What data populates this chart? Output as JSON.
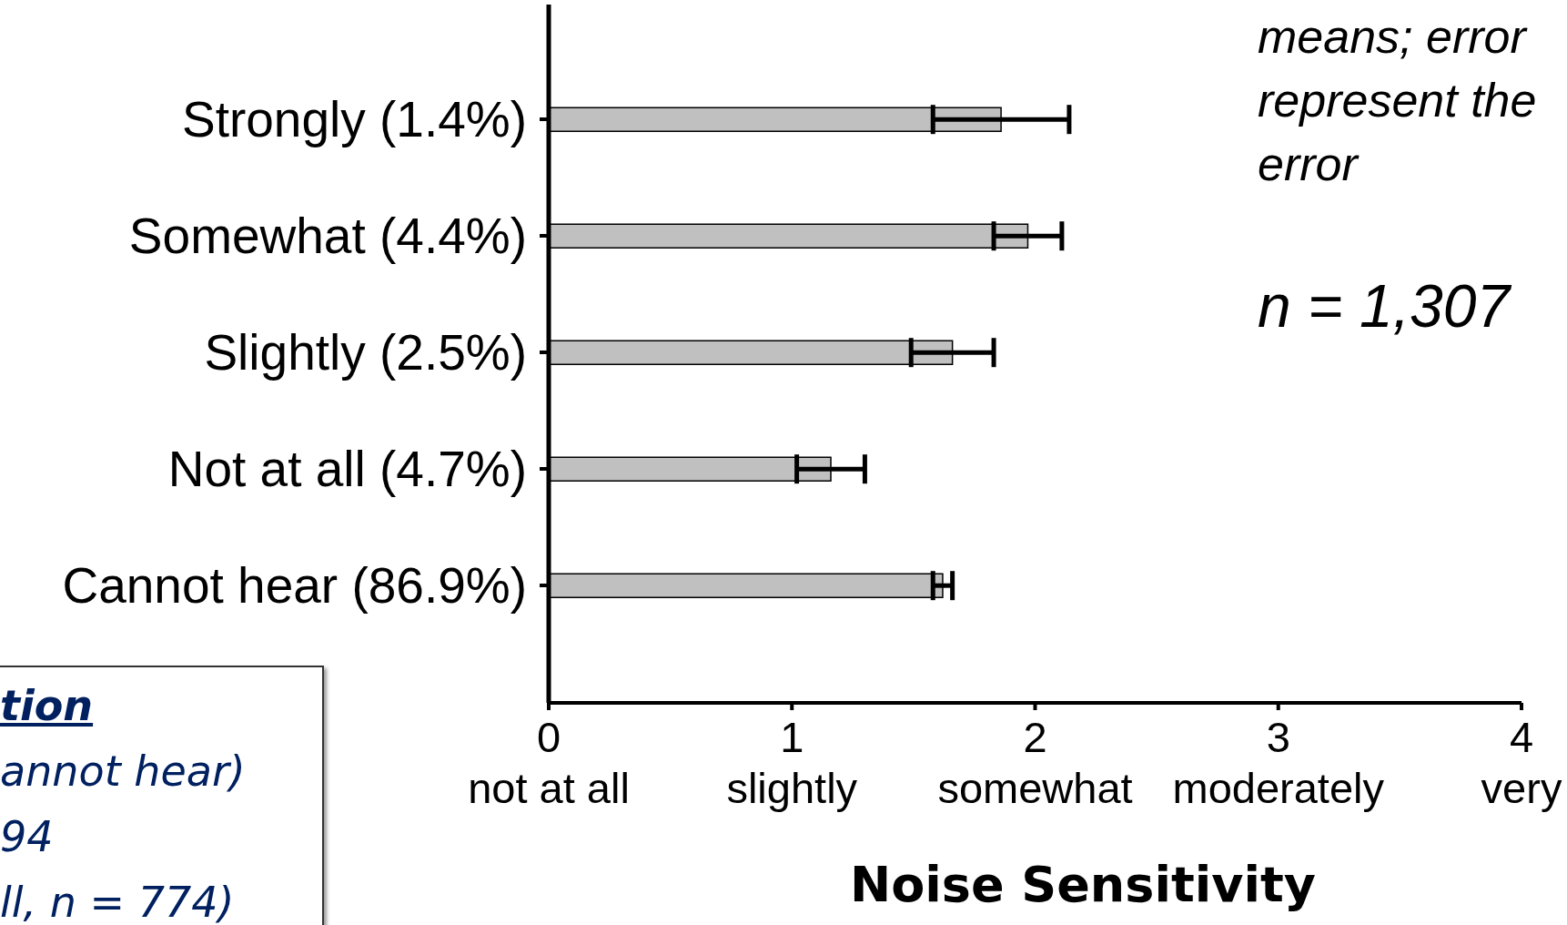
{
  "chart_data": {
    "type": "bar",
    "orientation": "horizontal",
    "xlabel": "Noise Sensitivity",
    "categories": [
      "Strongly (1.4%)",
      "Somewhat (4.4%)",
      "Slightly (2.5%)",
      "Not at all (4.7%)",
      "Cannot hear (86.9%)"
    ],
    "values": [
      1.86,
      1.97,
      1.66,
      1.16,
      1.62
    ],
    "errors": [
      0.28,
      0.14,
      0.17,
      0.14,
      0.04
    ],
    "color": "#c0c0c0",
    "xlim": [
      0,
      4
    ],
    "xticks": [
      {
        "value": 0,
        "label": "0\nnot at all"
      },
      {
        "value": 1,
        "label": "1\nslightly"
      },
      {
        "value": 2,
        "label": "2\nsomewhat"
      },
      {
        "value": 3,
        "label": "3\nmoderately"
      },
      {
        "value": 4,
        "label": "4\nvery"
      }
    ],
    "annotations": [
      "means; error",
      "represent the",
      "error",
      "n = 1,307",
      "tion",
      "annot hear)",
      "94",
      "ll, n = 774)"
    ]
  }
}
